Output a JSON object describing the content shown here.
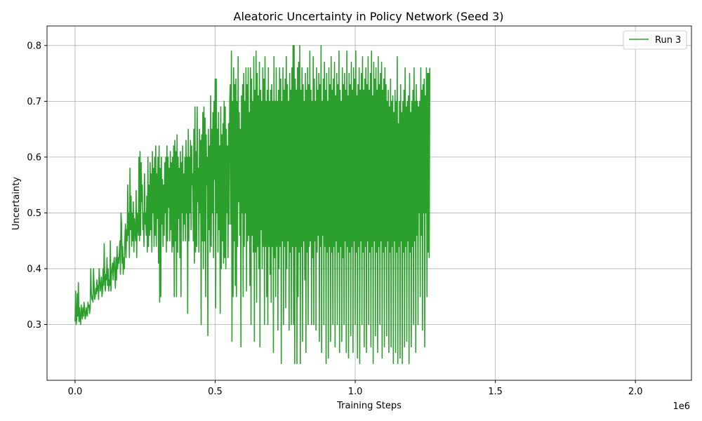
{
  "chart_data": {
    "type": "line",
    "title": "Aleatoric Uncertainty in Policy Network (Seed 3)",
    "xlabel": "Training Steps",
    "ylabel": "Uncertainty",
    "x_offset_label": "1e6",
    "xlim": [
      -100000,
      2200000
    ],
    "ylim": [
      0.2,
      0.835
    ],
    "xticks": [
      0,
      500000,
      1000000,
      1500000,
      2000000
    ],
    "xtick_labels": [
      "0.0",
      "0.5",
      "1.0",
      "1.5",
      "2.0"
    ],
    "yticks": [
      0.3,
      0.4,
      0.5,
      0.6,
      0.7,
      0.8
    ],
    "ytick_labels": [
      "0.3",
      "0.4",
      "0.5",
      "0.6",
      "0.7",
      "0.8"
    ],
    "grid": true,
    "legend_position": "top-right",
    "series": [
      {
        "name": "Run 3",
        "color": "#2ca02c",
        "x_start": 0,
        "x_step": 2000,
        "values": [
          0.305,
          0.36,
          0.3,
          0.31,
          0.355,
          0.315,
          0.375,
          0.305,
          0.33,
          0.31,
          0.3,
          0.335,
          0.32,
          0.31,
          0.33,
          0.315,
          0.34,
          0.33,
          0.31,
          0.315,
          0.33,
          0.32,
          0.315,
          0.34,
          0.33,
          0.335,
          0.32,
          0.33,
          0.4,
          0.36,
          0.345,
          0.35,
          0.34,
          0.4,
          0.37,
          0.345,
          0.35,
          0.365,
          0.355,
          0.38,
          0.36,
          0.37,
          0.345,
          0.4,
          0.38,
          0.36,
          0.37,
          0.385,
          0.35,
          0.36,
          0.4,
          0.37,
          0.445,
          0.38,
          0.36,
          0.39,
          0.38,
          0.42,
          0.37,
          0.4,
          0.36,
          0.38,
          0.37,
          0.45,
          0.36,
          0.39,
          0.4,
          0.41,
          0.38,
          0.41,
          0.42,
          0.39,
          0.365,
          0.42,
          0.38,
          0.44,
          0.4,
          0.42,
          0.41,
          0.43,
          0.45,
          0.39,
          0.5,
          0.48,
          0.41,
          0.44,
          0.39,
          0.42,
          0.4,
          0.46,
          0.48,
          0.42,
          0.47,
          0.45,
          0.55,
          0.46,
          0.5,
          0.42,
          0.58,
          0.47,
          0.53,
          0.44,
          0.5,
          0.45,
          0.52,
          0.43,
          0.49,
          0.47,
          0.45,
          0.54,
          0.42,
          0.5,
          0.48,
          0.46,
          0.6,
          0.45,
          0.61,
          0.46,
          0.59,
          0.52,
          0.55,
          0.47,
          0.5,
          0.44,
          0.57,
          0.48,
          0.5,
          0.46,
          0.53,
          0.43,
          0.6,
          0.44,
          0.55,
          0.46,
          0.59,
          0.47,
          0.57,
          0.43,
          0.61,
          0.5,
          0.58,
          0.44,
          0.6,
          0.46,
          0.62,
          0.44,
          0.57,
          0.49,
          0.6,
          0.41,
          0.62,
          0.34,
          0.58,
          0.35,
          0.6,
          0.48,
          0.56,
          0.44,
          0.55,
          0.46,
          0.59,
          0.5,
          0.6,
          0.43,
          0.62,
          0.45,
          0.6,
          0.51,
          0.58,
          0.45,
          0.61,
          0.47,
          0.59,
          0.43,
          0.6,
          0.44,
          0.62,
          0.35,
          0.63,
          0.45,
          0.61,
          0.35,
          0.64,
          0.43,
          0.6,
          0.49,
          0.58,
          0.42,
          0.61,
          0.35,
          0.59,
          0.5,
          0.62,
          0.45,
          0.57,
          0.48,
          0.6,
          0.45,
          0.63,
          0.5,
          0.6,
          0.32,
          0.65,
          0.45,
          0.6,
          0.5,
          0.63,
          0.47,
          0.62,
          0.55,
          0.57,
          0.45,
          0.65,
          0.41,
          0.69,
          0.43,
          0.61,
          0.44,
          0.69,
          0.52,
          0.58,
          0.43,
          0.65,
          0.5,
          0.63,
          0.3,
          0.64,
          0.45,
          0.68,
          0.4,
          0.69,
          0.45,
          0.67,
          0.35,
          0.64,
          0.55,
          0.6,
          0.28,
          0.65,
          0.47,
          0.62,
          0.43,
          0.71,
          0.44,
          0.65,
          0.5,
          0.68,
          0.42,
          0.7,
          0.56,
          0.74,
          0.33,
          0.74,
          0.5,
          0.65,
          0.43,
          0.68,
          0.47,
          0.62,
          0.32,
          0.69,
          0.4,
          0.64,
          0.45,
          0.66,
          0.41,
          0.7,
          0.42,
          0.69,
          0.4,
          0.65,
          0.5,
          0.62,
          0.42,
          0.66,
          0.48,
          0.7,
          0.73,
          0.48,
          0.79,
          0.27,
          0.7,
          0.35,
          0.76,
          0.45,
          0.73,
          0.37,
          0.74,
          0.35,
          0.7,
          0.44,
          0.78,
          0.52,
          0.68,
          0.46,
          0.65,
          0.26,
          0.71,
          0.5,
          0.73,
          0.35,
          0.75,
          0.44,
          0.7,
          0.5,
          0.76,
          0.36,
          0.73,
          0.45,
          0.76,
          0.46,
          0.68,
          0.37,
          0.76,
          0.3,
          0.74,
          0.46,
          0.7,
          0.43,
          0.78,
          0.27,
          0.72,
          0.43,
          0.79,
          0.34,
          0.75,
          0.44,
          0.71,
          0.4,
          0.77,
          0.26,
          0.72,
          0.47,
          0.7,
          0.4,
          0.76,
          0.44,
          0.74,
          0.3,
          0.78,
          0.44,
          0.7,
          0.35,
          0.72,
          0.3,
          0.76,
          0.44,
          0.7,
          0.39,
          0.72,
          0.34,
          0.73,
          0.44,
          0.7,
          0.25,
          0.78,
          0.42,
          0.7,
          0.35,
          0.76,
          0.44,
          0.7,
          0.29,
          0.72,
          0.4,
          0.76,
          0.44,
          0.74,
          0.23,
          0.7,
          0.45,
          0.76,
          0.3,
          0.72,
          0.44,
          0.74,
          0.33,
          0.78,
          0.4,
          0.73,
          0.45,
          0.7,
          0.29,
          0.75,
          0.43,
          0.72,
          0.3,
          0.76,
          0.44,
          0.8,
          0.3,
          0.8,
          0.23,
          0.74,
          0.44,
          0.72,
          0.23,
          0.76,
          0.35,
          0.77,
          0.43,
          0.8,
          0.23,
          0.72,
          0.44,
          0.76,
          0.27,
          0.73,
          0.45,
          0.7,
          0.38,
          0.75,
          0.25,
          0.72,
          0.43,
          0.76,
          0.3,
          0.73,
          0.44,
          0.79,
          0.45,
          0.72,
          0.3,
          0.7,
          0.42,
          0.78,
          0.3,
          0.74,
          0.45,
          0.7,
          0.29,
          0.76,
          0.43,
          0.72,
          0.46,
          0.75,
          0.27,
          0.73,
          0.44,
          0.8,
          0.25,
          0.7,
          0.46,
          0.74,
          0.3,
          0.77,
          0.44,
          0.72,
          0.23,
          0.75,
          0.43,
          0.7,
          0.24,
          0.76,
          0.44,
          0.73,
          0.27,
          0.78,
          0.43,
          0.72,
          0.3,
          0.74,
          0.44,
          0.77,
          0.26,
          0.71,
          0.45,
          0.75,
          0.3,
          0.73,
          0.43,
          0.79,
          0.25,
          0.72,
          0.44,
          0.7,
          0.27,
          0.76,
          0.42,
          0.73,
          0.3,
          0.75,
          0.45,
          0.72,
          0.25,
          0.79,
          0.44,
          0.71,
          0.24,
          0.75,
          0.43,
          0.73,
          0.28,
          0.77,
          0.44,
          0.72,
          0.25,
          0.76,
          0.45,
          0.74,
          0.3,
          0.79,
          0.43,
          0.71,
          0.24,
          0.73,
          0.44,
          0.76,
          0.23,
          0.72,
          0.45,
          0.75,
          0.3,
          0.78,
          0.43,
          0.72,
          0.26,
          0.74,
          0.44,
          0.76,
          0.25,
          0.73,
          0.45,
          0.78,
          0.3,
          0.72,
          0.43,
          0.75,
          0.26,
          0.79,
          0.44,
          0.71,
          0.23,
          0.77,
          0.45,
          0.74,
          0.28,
          0.76,
          0.43,
          0.72,
          0.25,
          0.78,
          0.44,
          0.73,
          0.3,
          0.75,
          0.45,
          0.77,
          0.24,
          0.72,
          0.43,
          0.74,
          0.26,
          0.76,
          0.44,
          0.73,
          0.28,
          0.7,
          0.45,
          0.72,
          0.25,
          0.69,
          0.43,
          0.74,
          0.26,
          0.7,
          0.44,
          0.71,
          0.23,
          0.68,
          0.45,
          0.72,
          0.25,
          0.7,
          0.43,
          0.78,
          0.23,
          0.66,
          0.44,
          0.7,
          0.24,
          0.73,
          0.45,
          0.68,
          0.23,
          0.7,
          0.43,
          0.72,
          0.26,
          0.76,
          0.44,
          0.69,
          0.27,
          0.7,
          0.45,
          0.71,
          0.23,
          0.75,
          0.43,
          0.68,
          0.26,
          0.7,
          0.44,
          0.72,
          0.3,
          0.76,
          0.45,
          0.7,
          0.25,
          0.73,
          0.46,
          0.7,
          0.3,
          0.69,
          0.5,
          0.7,
          0.35,
          0.76,
          0.46,
          0.72,
          0.29,
          0.73,
          0.5,
          0.74,
          0.26,
          0.71,
          0.5,
          0.76,
          0.35,
          0.75,
          0.43,
          0.75,
          0.42,
          0.76
        ]
      }
    ]
  }
}
